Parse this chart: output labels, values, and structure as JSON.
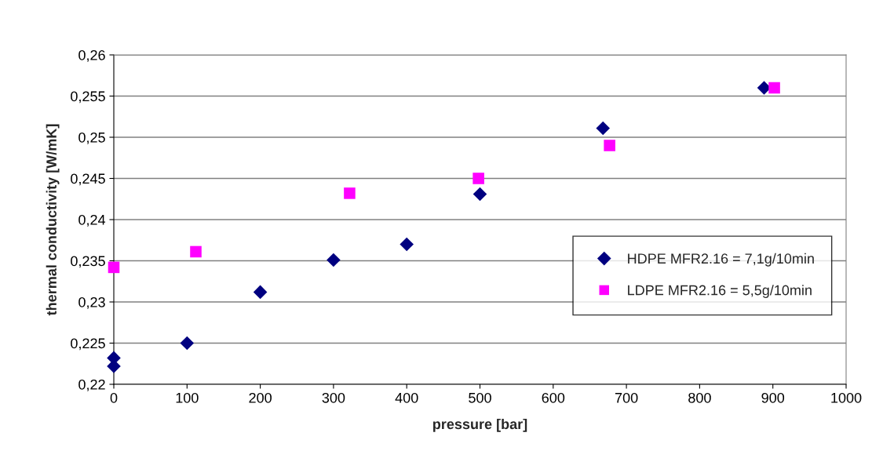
{
  "chart_data": {
    "type": "scatter",
    "xlabel": "pressure [bar]",
    "ylabel": "thermal conductivity [W/mK]",
    "xlim": [
      0,
      1000
    ],
    "xticks": [
      0,
      100,
      200,
      300,
      400,
      500,
      600,
      700,
      800,
      900,
      1000
    ],
    "ylim": [
      0.22,
      0.26
    ],
    "yticks": [
      {
        "value": 0.22,
        "label": "0,22"
      },
      {
        "value": 0.225,
        "label": "0,225"
      },
      {
        "value": 0.23,
        "label": "0,23"
      },
      {
        "value": 0.235,
        "label": "0,235"
      },
      {
        "value": 0.24,
        "label": "0,24"
      },
      {
        "value": 0.245,
        "label": "0,245"
      },
      {
        "value": 0.25,
        "label": "0,25"
      },
      {
        "value": 0.255,
        "label": "0,255"
      },
      {
        "value": 0.26,
        "label": "0,26"
      }
    ],
    "grid": "y",
    "legend": "right",
    "series": [
      {
        "name": "HDPE MFR2.16 = 7,1g/10min",
        "color": "#000080",
        "marker": "diamond",
        "x": [
          0,
          0,
          100,
          200,
          300,
          400,
          500,
          668,
          888
        ],
        "values": [
          0.2222,
          0.2232,
          0.225,
          0.2312,
          0.2351,
          0.237,
          0.2431,
          0.2511,
          0.256
        ]
      },
      {
        "name": "LDPE MFR2.16 = 5,5g/10min",
        "color": "#ff00ff",
        "marker": "square",
        "x": [
          0,
          112,
          322,
          498,
          677,
          902
        ],
        "values": [
          0.2342,
          0.2361,
          0.2432,
          0.245,
          0.249,
          0.256
        ]
      }
    ]
  }
}
